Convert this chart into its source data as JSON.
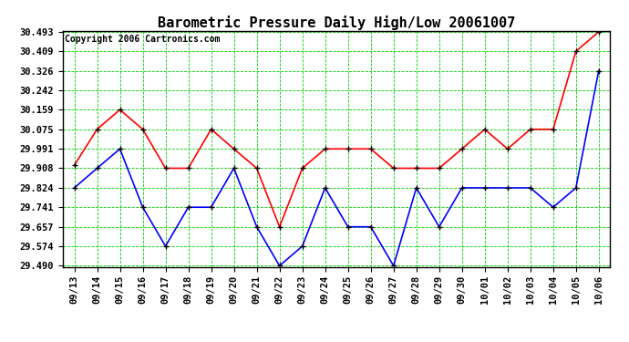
{
  "title": "Barometric Pressure Daily High/Low 20061007",
  "copyright": "Copyright 2006 Cartronics.com",
  "background_color": "#ffffff",
  "plot_bg_color": "#ffffff",
  "grid_color": "#00cc00",
  "xlabels": [
    "09/13",
    "09/14",
    "09/15",
    "09/16",
    "09/17",
    "09/18",
    "09/19",
    "09/20",
    "09/21",
    "09/22",
    "09/23",
    "09/24",
    "09/25",
    "09/26",
    "09/27",
    "09/28",
    "09/29",
    "09/30",
    "10/01",
    "10/02",
    "10/03",
    "10/04",
    "10/05",
    "10/06"
  ],
  "high_values": [
    29.921,
    30.075,
    30.159,
    30.075,
    29.908,
    29.908,
    30.075,
    29.991,
    29.908,
    29.657,
    29.908,
    29.991,
    29.991,
    29.991,
    29.908,
    29.908,
    29.908,
    29.991,
    30.075,
    29.991,
    30.075,
    30.075,
    30.409,
    30.493
  ],
  "low_values": [
    29.824,
    29.908,
    29.991,
    29.741,
    29.574,
    29.741,
    29.741,
    29.908,
    29.657,
    29.49,
    29.574,
    29.824,
    29.657,
    29.657,
    29.49,
    29.824,
    29.657,
    29.824,
    29.824,
    29.824,
    29.824,
    29.741,
    29.824,
    30.326
  ],
  "high_color": "#ff0000",
  "low_color": "#0000ff",
  "marker_color": "#000000",
  "ylim_min": 29.49,
  "ylim_max": 30.493,
  "yticks": [
    29.49,
    29.574,
    29.657,
    29.741,
    29.824,
    29.908,
    29.991,
    30.075,
    30.159,
    30.242,
    30.326,
    30.409,
    30.493
  ],
  "title_fontsize": 11,
  "tick_fontsize": 7.5,
  "copyright_fontsize": 7
}
